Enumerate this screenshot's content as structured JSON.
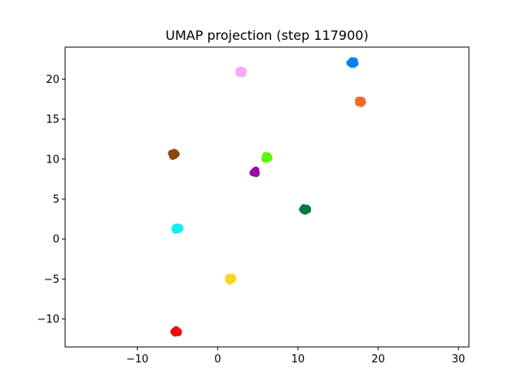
{
  "chart_data": {
    "type": "scatter",
    "title": "UMAP projection (step 117900)",
    "xlabel": "",
    "ylabel": "",
    "xlim": [
      -19,
      31.3
    ],
    "ylim": [
      -13.5,
      24
    ],
    "xticks": [
      -10,
      0,
      10,
      20,
      30
    ],
    "yticks": [
      -10,
      -5,
      0,
      5,
      10,
      15,
      20
    ],
    "grid": false,
    "legend": "none",
    "clusters": [
      {
        "color": "#0a7ff5",
        "x": 16.8,
        "y": 22.1
      },
      {
        "color": "#f9a8f4",
        "x": 2.9,
        "y": 20.9
      },
      {
        "color": "#f26a2a",
        "x": 17.8,
        "y": 17.2
      },
      {
        "color": "#8b4a08",
        "x": -5.5,
        "y": 10.6
      },
      {
        "color": "#5af50a",
        "x": 6.1,
        "y": 10.2
      },
      {
        "color": "#9a0aa8",
        "x": 4.7,
        "y": 8.4
      },
      {
        "color": "#087a44",
        "x": 10.9,
        "y": 3.7
      },
      {
        "color": "#12eef0",
        "x": -5.0,
        "y": 1.3
      },
      {
        "color": "#f7d62a",
        "x": 1.6,
        "y": -5.0
      },
      {
        "color": "#f20a0a",
        "x": -5.1,
        "y": -11.6
      }
    ]
  }
}
